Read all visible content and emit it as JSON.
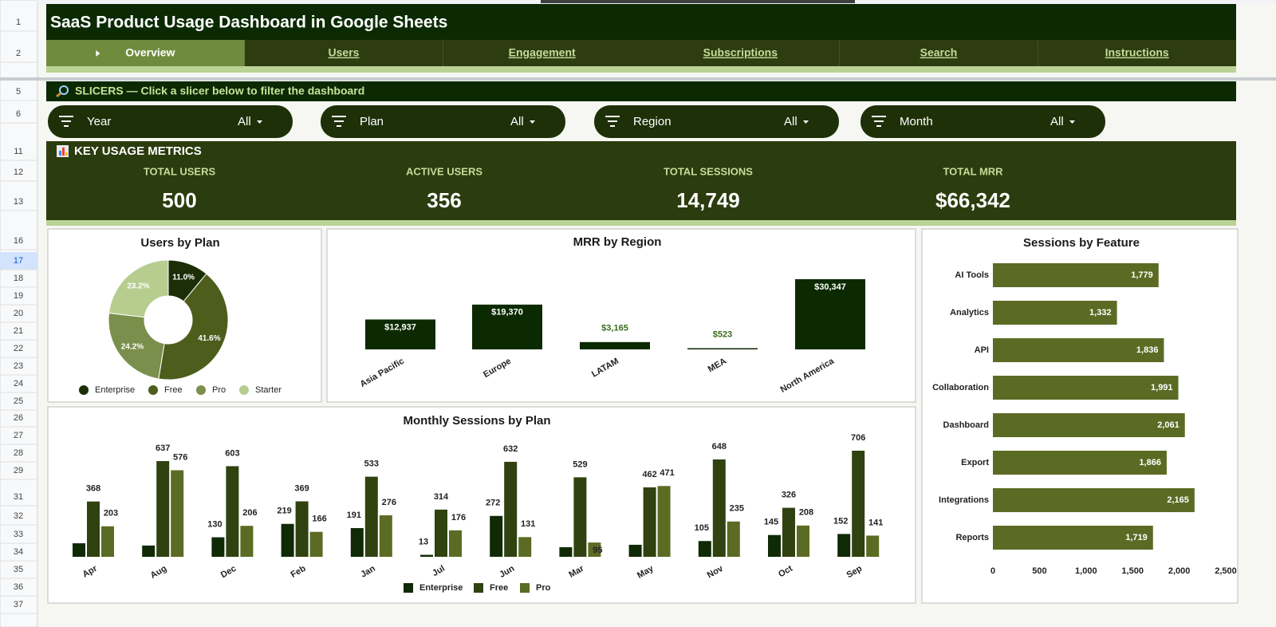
{
  "header": {
    "title": "SaaS Product Usage Dashboard in Google Sheets"
  },
  "nav": {
    "tabs": [
      "Overview",
      "Users",
      "Engagement",
      "Subscriptions",
      "Search",
      "Instructions"
    ],
    "active": 0
  },
  "slicers": {
    "title": "SLICERS — Click a slicer below to filter the dashboard",
    "items": [
      {
        "label": "Year",
        "value": "All"
      },
      {
        "label": "Plan",
        "value": "All"
      },
      {
        "label": "Region",
        "value": "All"
      },
      {
        "label": "Month",
        "value": "All"
      }
    ]
  },
  "metrics": {
    "title": "KEY USAGE METRICS",
    "items": [
      {
        "label": "TOTAL USERS",
        "value": "500"
      },
      {
        "label": "ACTIVE USERS",
        "value": "356"
      },
      {
        "label": "TOTAL SESSIONS",
        "value": "14,749"
      },
      {
        "label": "TOTAL MRR",
        "value": "$66,342"
      }
    ]
  },
  "row_numbers": [
    1,
    2,
    5,
    6,
    11,
    12,
    13,
    16,
    17,
    18,
    19,
    20,
    21,
    22,
    23,
    24,
    25,
    26,
    27,
    28,
    29,
    31,
    32,
    33,
    34,
    35,
    36,
    37
  ],
  "chart_data": [
    {
      "type": "pie",
      "title": "Users by Plan",
      "donut": true,
      "categories": [
        "Enterprise",
        "Free",
        "Pro",
        "Starter"
      ],
      "values": [
        11.0,
        41.6,
        24.2,
        23.2
      ],
      "value_labels": [
        "11.0%",
        "41.6%",
        "24.2%",
        "23.2%"
      ],
      "colors": [
        "#1b2e06",
        "#4d5d1c",
        "#7b8f4c",
        "#b7cd8f"
      ],
      "legend": "bottom"
    },
    {
      "type": "bar",
      "title": "MRR by Region",
      "categories": [
        "Asia Pacific",
        "Europe",
        "LATAM",
        "MEA",
        "North America"
      ],
      "values": [
        12937,
        19370,
        3165,
        523,
        30347
      ],
      "value_labels": [
        "$12,937",
        "$19,370",
        "$3,165",
        "$523",
        "$30,347"
      ],
      "color": "#0c2a02"
    },
    {
      "type": "hbar",
      "title": "Sessions by Feature",
      "categories": [
        "AI Tools",
        "Analytics",
        "API",
        "Collaboration",
        "Dashboard",
        "Export",
        "Integrations",
        "Reports"
      ],
      "values": [
        1779,
        1332,
        1836,
        1991,
        2061,
        1866,
        2165,
        1719
      ],
      "value_labels": [
        "1,779",
        "1,332",
        "1,836",
        "1,991",
        "2,061",
        "1,866",
        "2,165",
        "1,719"
      ],
      "color": "#5c6b24",
      "xlim": [
        0,
        2500
      ],
      "xticks": [
        0,
        500,
        {
          "value": 1000,
          "label": "1,000"
        },
        {
          "value": 1500,
          "label": "1,500"
        },
        {
          "value": 2000,
          "label": "2,000"
        },
        {
          "value": 2500,
          "label": "2,500"
        }
      ]
    },
    {
      "type": "grouped_bar",
      "title": "Monthly Sessions by Plan",
      "legend": "bottom",
      "categories": [
        "Apr",
        "Aug",
        "Dec",
        "Feb",
        "Jan",
        "Jul",
        "Jun",
        "Mar",
        "May",
        "Nov",
        "Oct",
        "Sep"
      ],
      "series": [
        {
          "name": "Enterprise",
          "color": "#0f2a05",
          "values": [
            90,
            75,
            130,
            219,
            191,
            13,
            272,
            64,
            80,
            105,
            145,
            152
          ],
          "value_labels": [
            null,
            null,
            "130",
            "219",
            "191",
            "13",
            "272",
            null,
            null,
            "105",
            "145",
            "152"
          ]
        },
        {
          "name": "Free",
          "color": "#2f4210",
          "values": [
            368,
            637,
            603,
            369,
            533,
            314,
            632,
            529,
            462,
            648,
            326,
            706
          ],
          "value_labels": [
            "368",
            "637",
            "603",
            "369",
            "533",
            "314",
            "632",
            "529",
            "462",
            "648",
            "326",
            "706"
          ]
        },
        {
          "name": "Pro",
          "color": "#5c6b24",
          "values": [
            203,
            576,
            206,
            166,
            276,
            176,
            131,
            95,
            471,
            235,
            208,
            141
          ],
          "value_labels": [
            "203",
            "576",
            "206",
            "166",
            "276",
            "176",
            "131",
            "95",
            "471",
            "235",
            "208",
            "141"
          ]
        }
      ]
    }
  ]
}
